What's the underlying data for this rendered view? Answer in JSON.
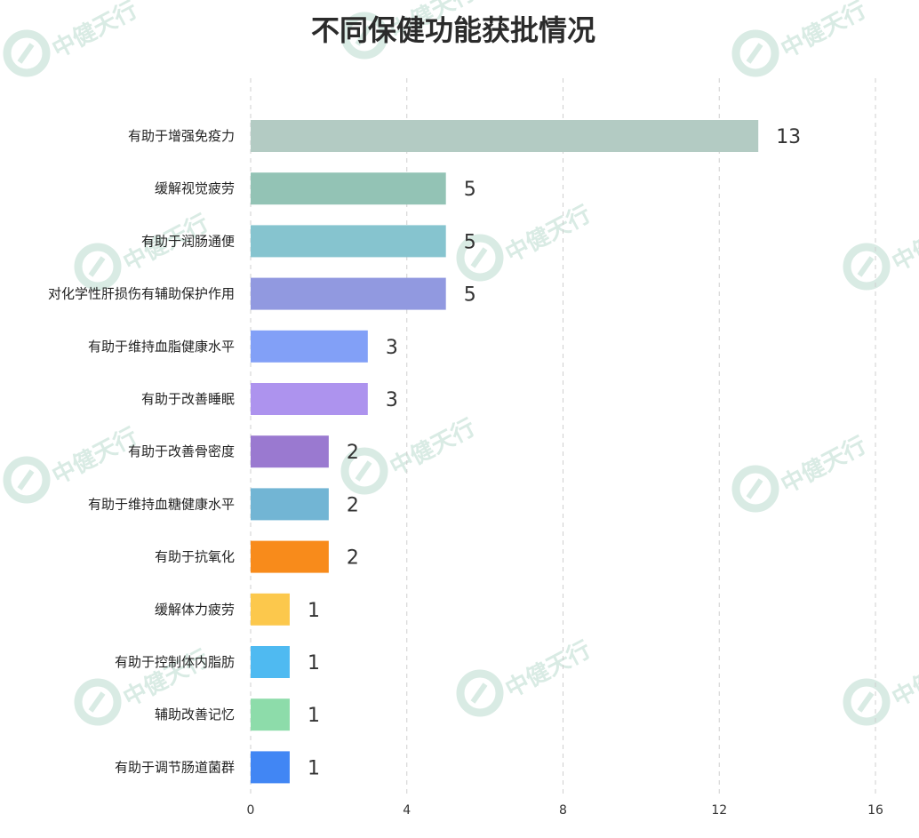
{
  "chart_data": {
    "type": "bar",
    "orientation": "horizontal",
    "title": "不同保健功能获批情况",
    "categories": [
      "有助于增强免疫力",
      "缓解视觉疲劳",
      "有助于润肠通便",
      "对化学性肝损伤有辅助保护作用",
      "有助于维持血脂健康水平",
      "有助于改善睡眠",
      "有助于改善骨密度",
      "有助于维持血糖健康水平",
      "有助于抗氧化",
      "缓解体力疲劳",
      "有助于控制体内脂肪",
      "辅助改善记忆",
      "有助于调节肠道菌群"
    ],
    "values": [
      13,
      5,
      5,
      5,
      3,
      3,
      2,
      2,
      2,
      1,
      1,
      1,
      1
    ],
    "colors": [
      "#b3cbc3",
      "#93c3b5",
      "#86c4cf",
      "#9199e0",
      "#82a0f7",
      "#ad93ee",
      "#9a79d0",
      "#72b5d4",
      "#f88b1b",
      "#fcc84c",
      "#4fbaf1",
      "#8ddcaa",
      "#4186f4"
    ],
    "xlim": [
      0,
      16
    ],
    "xticks": [
      0,
      4,
      8,
      12,
      16
    ],
    "grid": "vertical dashed",
    "legend": "none"
  },
  "watermark": {
    "text": "中健天行",
    "color": "#d9ebe4",
    "icon": "zjtx-logo-icon"
  }
}
